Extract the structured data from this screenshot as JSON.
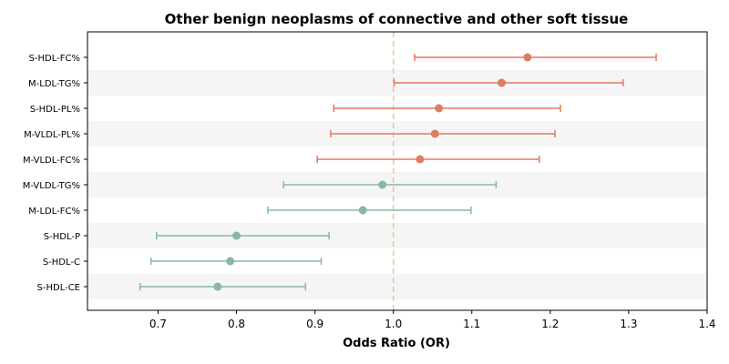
{
  "chart_data": {
    "type": "forest",
    "title": "Other benign neoplasms of connective and other soft tissue",
    "xlabel": "Odds Ratio (OR)",
    "ylabel": "",
    "xlim": [
      0.61,
      1.4
    ],
    "xticks": [
      "0.7",
      "0.8",
      "0.9",
      "1.0",
      "1.1",
      "1.2",
      "1.3",
      "1.4"
    ],
    "reference_line": 1.0,
    "grid": false,
    "colors": {
      "above_one": "#e07b61",
      "below_one": "#86b9a0",
      "reference": "#f2c48d",
      "band": "#f5f5f5"
    },
    "rows": [
      {
        "label": "S-HDL-FC%",
        "or": 1.171,
        "lower": 1.027,
        "upper": 1.335
      },
      {
        "label": "M-LDL-TG%",
        "or": 1.138,
        "lower": 1.001,
        "upper": 1.293
      },
      {
        "label": "S-HDL-PL%",
        "or": 1.058,
        "lower": 0.924,
        "upper": 1.213
      },
      {
        "label": "M-VLDL-PL%",
        "or": 1.053,
        "lower": 0.92,
        "upper": 1.206
      },
      {
        "label": "M-VLDL-FC%",
        "or": 1.034,
        "lower": 0.903,
        "upper": 1.186
      },
      {
        "label": "M-VLDL-TG%",
        "or": 0.986,
        "lower": 0.86,
        "upper": 1.131
      },
      {
        "label": "M-LDL-FC%",
        "or": 0.961,
        "lower": 0.84,
        "upper": 1.099
      },
      {
        "label": "S-HDL-P",
        "or": 0.8,
        "lower": 0.698,
        "upper": 0.918
      },
      {
        "label": "S-HDL-C",
        "or": 0.792,
        "lower": 0.691,
        "upper": 0.908
      },
      {
        "label": "S-HDL-CE",
        "or": 0.776,
        "lower": 0.677,
        "upper": 0.888
      }
    ]
  }
}
